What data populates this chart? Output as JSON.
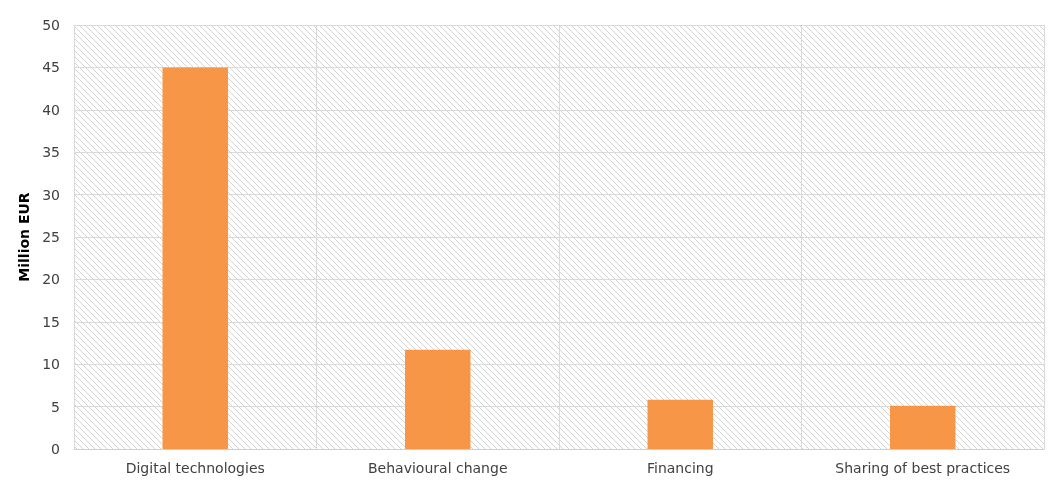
{
  "chart_data": {
    "type": "bar",
    "ylabel": "Million EUR",
    "categories": [
      "Digital technologies",
      "Behavioural change",
      "Financing",
      "Sharing of best practices"
    ],
    "values": [
      45,
      11.7,
      5.8,
      5.1
    ],
    "color": "#f79646",
    "ylim": [
      0,
      50
    ],
    "yticks": [
      0,
      5,
      10,
      15,
      20,
      25,
      30,
      35,
      40,
      45,
      50
    ],
    "grid": true
  }
}
